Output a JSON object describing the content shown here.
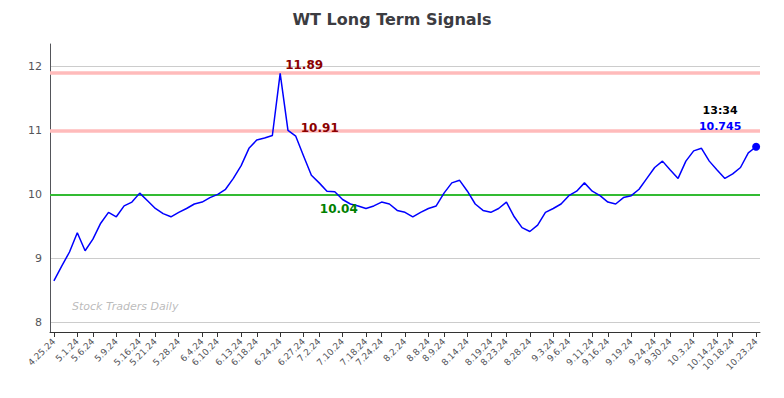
{
  "chart_data": {
    "type": "line",
    "title": "WT Long Term Signals",
    "categories": [
      "4.25.24",
      null,
      null,
      "5.1.24",
      null,
      "5.6.24",
      null,
      null,
      "5.9.24",
      null,
      null,
      "5.16.24",
      null,
      "5.21.24",
      null,
      null,
      "5.28.24",
      null,
      null,
      "6.4.24",
      null,
      "6.10.24",
      null,
      null,
      "6.13.24",
      null,
      "6.18.24",
      null,
      null,
      "6.24.24",
      null,
      null,
      "6.27.24",
      null,
      "7.2.24",
      null,
      null,
      "7.10.24",
      null,
      null,
      "7.18.24",
      null,
      "7.24.24",
      null,
      null,
      "8.2.24",
      null,
      null,
      "8.8.24",
      null,
      "8.9.24",
      null,
      null,
      "8.14.24",
      null,
      null,
      "8.19.24",
      null,
      "8.23.24",
      null,
      null,
      "8.28.24",
      null,
      null,
      "9.3.24",
      null,
      "9.6.24",
      null,
      null,
      "9.11.24",
      null,
      "9.16.24",
      null,
      null,
      "9.19.24",
      null,
      null,
      "9.24.24",
      null,
      "9.30.24",
      null,
      null,
      "10.3.24",
      null,
      null,
      "10.14.24",
      null,
      "10.18.24",
      null,
      null,
      "10.23.24"
    ],
    "values": [
      8.65,
      8.88,
      9.1,
      9.4,
      9.12,
      9.3,
      9.55,
      9.72,
      9.65,
      9.82,
      9.88,
      10.02,
      9.9,
      9.78,
      9.7,
      9.65,
      9.72,
      9.78,
      9.85,
      9.88,
      9.95,
      10.0,
      10.08,
      10.25,
      10.45,
      10.72,
      10.85,
      10.88,
      10.92,
      11.89,
      11.0,
      10.91,
      10.6,
      10.3,
      10.18,
      10.05,
      10.04,
      9.92,
      9.85,
      9.82,
      9.78,
      9.82,
      9.88,
      9.85,
      9.75,
      9.72,
      9.65,
      9.72,
      9.78,
      9.82,
      10.02,
      10.18,
      10.22,
      10.05,
      9.85,
      9.75,
      9.72,
      9.78,
      9.88,
      9.65,
      9.48,
      9.42,
      9.52,
      9.72,
      9.78,
      9.85,
      9.98,
      10.05,
      10.18,
      10.05,
      9.98,
      9.88,
      9.85,
      9.95,
      9.98,
      10.08,
      10.25,
      10.42,
      10.52,
      10.38,
      10.25,
      10.52,
      10.68,
      10.72,
      10.52,
      10.38,
      10.25,
      10.32,
      10.42,
      10.65,
      10.745
    ],
    "color": "blue",
    "ylim": [
      7.85,
      12.35
    ],
    "yticks": [
      8,
      9,
      10,
      11,
      12
    ],
    "grid": true,
    "hlines": [
      {
        "value": 11.9,
        "color": "#ffbbbb"
      },
      {
        "value": 11.0,
        "color": "#ffbbbb"
      },
      {
        "value": 10.0,
        "color": "#33bb33"
      }
    ],
    "annotations": [
      {
        "text": "11.89",
        "index": 29,
        "color": "darkred"
      },
      {
        "text": "10.91",
        "index": 31,
        "color": "darkred"
      },
      {
        "text": "10.04",
        "index": 36,
        "color": "green"
      },
      {
        "text": "13:34",
        "index": 90,
        "color": "black"
      },
      {
        "text": "10.745",
        "index": 90,
        "color": "blue"
      }
    ],
    "watermark": "Stock Traders Daily"
  }
}
